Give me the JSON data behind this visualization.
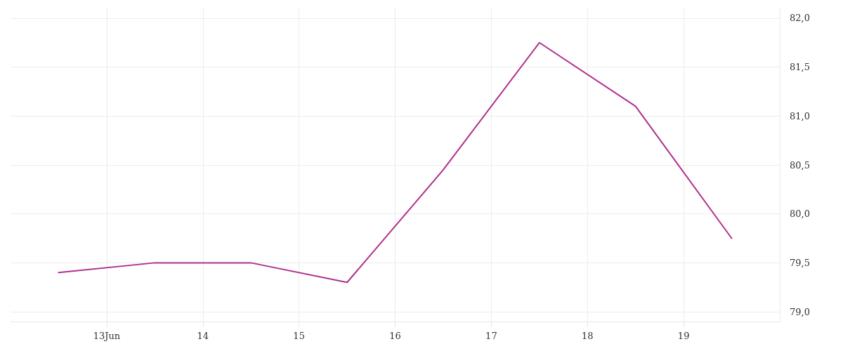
{
  "chart_data": {
    "type": "line",
    "x": [
      "--06-12T12:00",
      "--06-13T12:00",
      "--06-14T12:00",
      "--06-15T12:00",
      "--06-16T12:00",
      "--06-17T12:00",
      "--06-18T12:00",
      "--06-19T12:00"
    ],
    "series": [
      {
        "color": "#b0308c",
        "values": [
          79.4,
          79.5,
          79.5,
          79.3,
          80.45,
          81.75,
          81.1,
          79.75
        ]
      }
    ],
    "xlim": [
      "--06-12",
      "--06-20"
    ],
    "xticks": [
      {
        "value": "--06-13",
        "label": "13Jun"
      },
      {
        "value": "--06-14",
        "label": "14"
      },
      {
        "value": "--06-15",
        "label": "15"
      },
      {
        "value": "--06-16",
        "label": "16"
      },
      {
        "value": "--06-17",
        "label": "17"
      },
      {
        "value": "--06-18",
        "label": "18"
      },
      {
        "value": "--06-19",
        "label": "19"
      }
    ],
    "ylim": [
      78.9,
      82.1
    ],
    "yticks": [
      {
        "value": 79,
        "label": "79,0"
      },
      {
        "value": 79.5,
        "label": "79,5"
      },
      {
        "value": 80,
        "label": "80,0"
      },
      {
        "value": 80.5,
        "label": "80,5"
      },
      {
        "value": 81,
        "label": "81,0"
      },
      {
        "value": 81.5,
        "label": "81,5"
      },
      {
        "value": 82,
        "label": "82,0"
      }
    ],
    "grid": true,
    "marker": "none",
    "line_style": "solid"
  }
}
